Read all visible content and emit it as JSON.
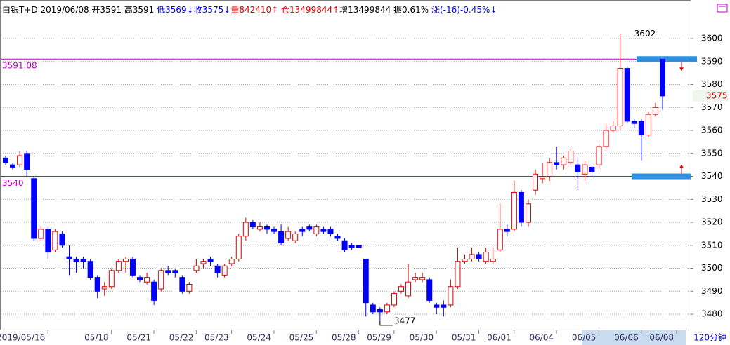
{
  "chart_data": {
    "type": "candlestick",
    "header": [
      {
        "text": "白银T+D 2019/06/08 开3591 高3591 ",
        "color": "#000000"
      },
      {
        "text": "低3569↓收3575↓",
        "color": "#0000ff"
      },
      {
        "text": "量842410↑ 仓13499844↑",
        "color": "#e00000"
      },
      {
        "text": "增13499844 振0.61% ",
        "color": "#000000"
      },
      {
        "text": "涨(-16)-0.45%↓",
        "color": "#0000ff"
      }
    ],
    "period": "120分钟",
    "up_color": "#e00000",
    "down_color": "#0000ff",
    "grid": true,
    "ylim": [
      3473.3,
      3616.8
    ],
    "yticks": [
      3480,
      3490,
      3500,
      3510,
      3520,
      3530,
      3540,
      3550,
      3560,
      3570,
      3580,
      3590,
      3600
    ],
    "hlines": [
      {
        "value": 3591.08,
        "label": "3591.08"
      },
      {
        "value": 3540,
        "label": "3540"
      }
    ],
    "categories": [
      null,
      null,
      null,
      null,
      "2019/05/16",
      null,
      null,
      null,
      null,
      null,
      null,
      null,
      null,
      "05/18",
      null,
      null,
      null,
      null,
      null,
      "05/21",
      null,
      null,
      null,
      null,
      null,
      "05/22",
      null,
      null,
      null,
      null,
      "05/23",
      null,
      null,
      null,
      null,
      null,
      "05/24",
      null,
      null,
      null,
      null,
      null,
      "05/25",
      null,
      null,
      null,
      null,
      null,
      "05/28",
      null,
      null,
      null,
      null,
      "05/29",
      null,
      null,
      null,
      null,
      null,
      "05/30",
      null,
      null,
      null,
      null,
      null,
      "05/31",
      null,
      null,
      null,
      null,
      "06/01",
      null,
      null,
      null,
      null,
      null,
      "06/04",
      null,
      null,
      null,
      null,
      null,
      "06/05",
      null,
      null,
      null,
      null,
      null,
      "06/06",
      null,
      null,
      null,
      null,
      "06/08"
    ],
    "open": [
      3548,
      3545,
      3545,
      3550,
      3539,
      3513,
      3517,
      3508,
      3515,
      3505,
      3504,
      3504,
      3503,
      3496,
      3491,
      3492,
      3499,
      3503,
      3504,
      3496,
      3494,
      3494,
      3491,
      3499,
      3499,
      3496,
      3490,
      3499,
      3502,
      3504,
      3501,
      3497,
      3502,
      3504,
      3514,
      3520,
      3517,
      3518,
      3517,
      3516,
      3513,
      3512,
      3517,
      3518,
      3515,
      3517,
      3517,
      3514,
      3512,
      3510,
      3510,
      3504,
      3484,
      3482,
      3481,
      3484,
      3490,
      3488,
      3495,
      3495,
      3495,
      3484,
      3484,
      3484,
      3492,
      3503,
      3504,
      3506,
      3503,
      3503,
      3508,
      3517,
      3517,
      3533,
      3520,
      3534,
      3539,
      3540,
      3546,
      3545,
      3546,
      3545,
      3541,
      3544,
      3545,
      3553,
      3560,
      3562,
      3587,
      3564,
      3564,
      3558,
      3567,
      3591
    ],
    "close": [
      3546,
      3544,
      3549,
      3543,
      3513,
      3517,
      3507,
      3516,
      3510,
      3504,
      3503,
      3503,
      3496,
      3490,
      3492,
      3499,
      3503,
      3504,
      3497,
      3495,
      3496,
      3486,
      3499,
      3498,
      3498,
      3490,
      3493,
      3501,
      3503,
      3503,
      3498,
      3501,
      3504,
      3514,
      3520,
      3518,
      3518,
      3517,
      3516,
      3511,
      3516,
      3515,
      3516,
      3517,
      3518,
      3516,
      3515,
      3513,
      3508,
      3509,
      3509,
      3485,
      3481,
      3481,
      3484,
      3489,
      3492,
      3494,
      3496,
      3496,
      3486,
      3483,
      3483,
      3492,
      3503,
      3504,
      3506,
      3504,
      3507,
      3504,
      3517,
      3516,
      3533,
      3520,
      3528,
      3541,
      3540,
      3546,
      3545,
      3548,
      3551,
      3542,
      3545,
      3542,
      3553,
      3560,
      3562,
      3587,
      3564,
      3563,
      3558,
      3567,
      3570,
      3575
    ],
    "high": [
      3549,
      3546,
      3551,
      3551,
      3540,
      3518,
      3518,
      3517,
      3516,
      3510,
      3505,
      3505,
      3504,
      3497,
      3494,
      3500,
      3504,
      3505,
      3505,
      3497,
      3498,
      3495,
      3500,
      3501,
      3500,
      3497,
      3494,
      3504,
      3504,
      3505,
      3502,
      3502,
      3505,
      3515,
      3522,
      3521,
      3520,
      3519,
      3518,
      3519,
      3518,
      3516,
      3518,
      3519,
      3519,
      3518,
      3518,
      3515,
      3513,
      3511,
      3510,
      3504,
      3485,
      3483,
      3485,
      3490,
      3493,
      3502,
      3498,
      3498,
      3496,
      3485,
      3486,
      3495,
      3509,
      3506,
      3509,
      3507,
      3509,
      3509,
      3528,
      3519,
      3538,
      3534,
      3530,
      3543,
      3546,
      3548,
      3553,
      3549,
      3552,
      3548,
      3547,
      3545,
      3554,
      3563,
      3564,
      3602,
      3588,
      3565,
      3565,
      3568,
      3572,
      3591
    ],
    "low": [
      3545,
      3543,
      3544,
      3540,
      3512,
      3512,
      3504,
      3507,
      3509,
      3497,
      3498,
      3500,
      3495,
      3487,
      3488,
      3491,
      3498,
      3498,
      3496,
      3494,
      3493,
      3484,
      3490,
      3497,
      3496,
      3489,
      3489,
      3498,
      3500,
      3501,
      3496,
      3496,
      3501,
      3503,
      3512,
      3517,
      3516,
      3515,
      3515,
      3510,
      3512,
      3511,
      3514,
      3516,
      3514,
      3515,
      3514,
      3512,
      3507,
      3508,
      3509,
      3479,
      3480,
      3477,
      3480,
      3483,
      3489,
      3487,
      3494,
      3494,
      3485,
      3480,
      3479,
      3483,
      3491,
      3502,
      3503,
      3503,
      3502,
      3502,
      3507,
      3514,
      3516,
      3518,
      3518,
      3532,
      3537,
      3538,
      3543,
      3543,
      3545,
      3534,
      3538,
      3540,
      3543,
      3552,
      3559,
      3560,
      3563,
      3561,
      3547,
      3557,
      3566,
      3569
    ]
  }
}
